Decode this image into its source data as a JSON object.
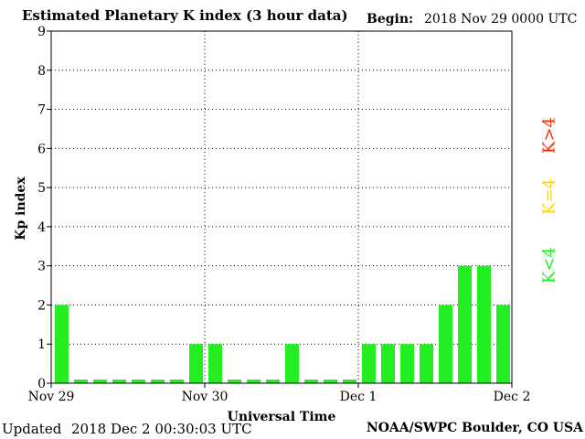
{
  "title": "Estimated Planetary K index (3 hour data)",
  "begin": {
    "label": "Begin:",
    "value": "2018 Nov 29 0000 UTC"
  },
  "footer": {
    "updated_label": "Updated",
    "updated_value": "2018 Dec  2 00:30:03 UTC",
    "credit": "NOAA/SWPC Boulder, CO USA"
  },
  "legend": {
    "high": {
      "label": "K>4",
      "color": "#ff2a00"
    },
    "mid": {
      "label": "K=4",
      "color": "#ffd700"
    },
    "low": {
      "label": "K<4",
      "color": "#22ee22"
    }
  },
  "colors": {
    "bar": "#22ee22",
    "grid": "#000000"
  },
  "chart_data": {
    "type": "bar",
    "xlabel": "Universal Time",
    "ylabel": "Kp index",
    "ylim": [
      0,
      9
    ],
    "yticks": [
      "0",
      "1",
      "2",
      "3",
      "4",
      "5",
      "6",
      "7",
      "8",
      "9"
    ],
    "xticks": [
      "Nov 29",
      "Nov 30",
      "Dec 1",
      "Dec 2"
    ],
    "grid": "dotted",
    "series": [
      {
        "values": [
          2,
          0,
          0,
          0,
          0,
          0,
          0,
          1,
          1,
          0,
          0,
          0,
          1,
          0,
          0,
          0,
          1,
          1,
          1,
          1,
          2,
          3,
          3,
          2
        ]
      }
    ]
  }
}
